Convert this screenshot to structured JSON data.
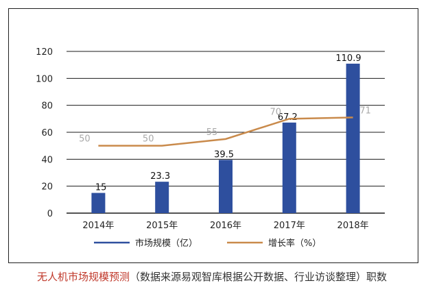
{
  "chart_data": {
    "type": "bar",
    "categories": [
      "2014年",
      "2015年",
      "2016年",
      "2017年",
      "2018年"
    ],
    "series": [
      {
        "name": "市场规模（亿）",
        "type": "bar",
        "values": [
          15,
          23.3,
          39.5,
          67.2,
          110.9
        ],
        "labels": [
          "15",
          "23.3",
          "39.5",
          "67.2",
          "110.9"
        ],
        "color": "#2e4f9e"
      },
      {
        "name": "增长率（%）",
        "type": "line",
        "values": [
          50,
          50,
          55,
          70,
          71
        ],
        "labels": [
          "50",
          "50",
          "55",
          "70",
          "71"
        ],
        "color": "#c98a4b"
      }
    ],
    "ylim": [
      0,
      120
    ],
    "yticks": [
      "0",
      "20",
      "40",
      "60",
      "80",
      "100",
      "120"
    ],
    "grid": true,
    "legend": "bottom"
  },
  "caption": {
    "title": "无人机市场规模预测",
    "source": "（数据来源易观智库根据公开数据、行业访谈整理）",
    "watermark": "职数"
  }
}
